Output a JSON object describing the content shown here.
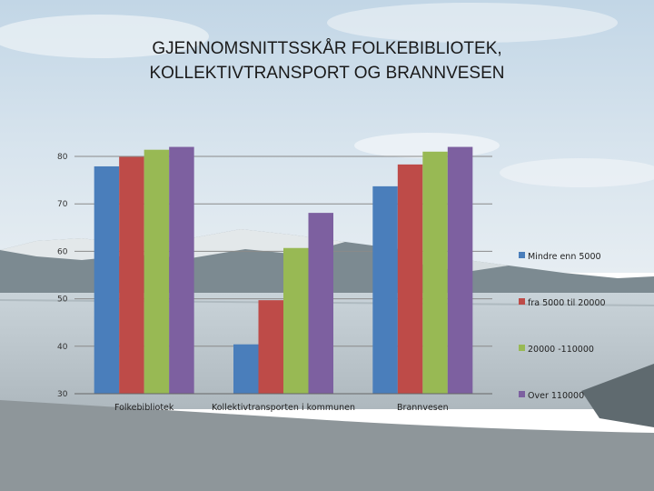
{
  "page": {
    "title_line1": "GJENNOMSNITTSSKÅR FOLKEBIBLIOTEK,",
    "title_line2": "KOLLEKTIVTRANSPORT OG BRANNVESEN"
  },
  "chart_data": {
    "type": "bar",
    "title": "GJENNOMSNITTSSKÅR FOLKEBIBLIOTEK, KOLLEKTIVTRANSPORT OG BRANNVESEN",
    "categories": [
      "Folkebibliotek",
      "Kollektivtransporten i kommunen",
      "Brannvesen"
    ],
    "series": [
      {
        "name": "Mindre enn 5000",
        "color": "#4a7ebb",
        "values": [
          77.9,
          40.4,
          73.7
        ]
      },
      {
        "name": "fra 5000 til 20000",
        "color": "#be4b48",
        "values": [
          79.9,
          49.7,
          78.3
        ]
      },
      {
        "name": "20000 -110000",
        "color": "#98b954",
        "values": [
          81.4,
          60.7,
          81.0
        ]
      },
      {
        "name": "Over 110000",
        "color": "#7d60a0",
        "values": [
          82.0,
          68.1,
          82.0
        ]
      }
    ],
    "yticks": [
      30,
      40,
      50,
      60,
      70,
      80
    ],
    "ylim": [
      30,
      82
    ],
    "grid": true,
    "legend": "right",
    "xlabel": "",
    "ylabel": ""
  }
}
